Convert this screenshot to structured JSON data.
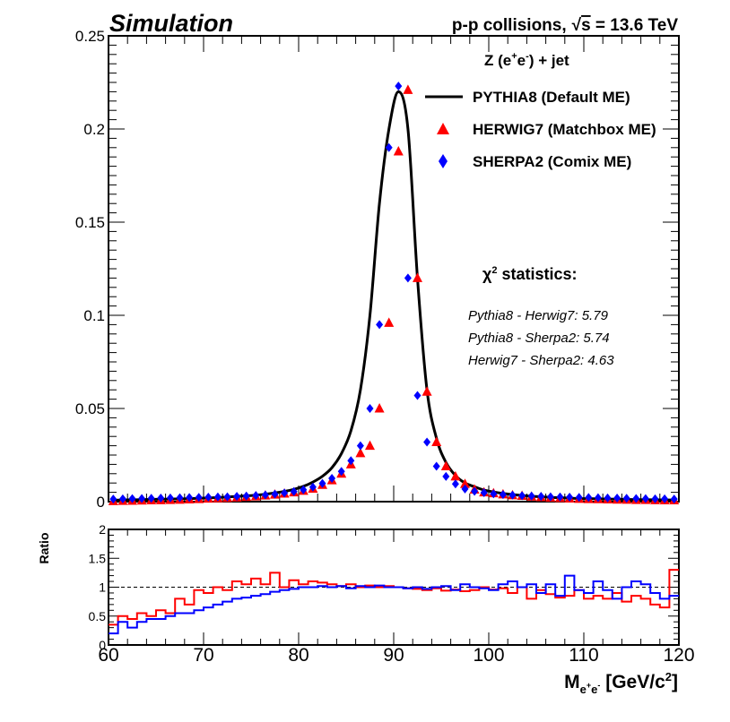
{
  "header": {
    "left": "Simulation",
    "right_prefix": "p-p collisions,",
    "right_sqrt": "√",
    "right_s": "s",
    "right_suffix": " = 13.6 TeV"
  },
  "process": {
    "main": "Z (e",
    "sup1": "+",
    "mid": "e",
    "sup2": "-",
    "tail": ") + jet"
  },
  "legend": [
    {
      "label": "PYTHIA8 (Default ME)",
      "marker": "line",
      "color": "#000000"
    },
    {
      "label": "HERWIG7 (Matchbox ME)",
      "marker": "triangle",
      "color": "#ff0000"
    },
    {
      "label": "SHERPA2 (Comix ME)",
      "marker": "diamond",
      "color": "#0000ff"
    }
  ],
  "chi2": {
    "title_symbol": "χ",
    "title_sup": "2",
    "title_rest": " statistics:",
    "lines": [
      "Pythia8 - Herwig7: 5.79",
      "Pythia8 - Sherpa2: 5.74",
      "Herwig7 - Sherpa2: 4.63"
    ]
  },
  "xlabel": {
    "main": "M",
    "sub1": "e",
    "subsup1": "+",
    "sub2": "e",
    "subsup2": "-",
    "unit": " [GeV/c",
    "unit_sup": "2",
    "unit_end": "]"
  },
  "ratio_ylabel": "Ratio",
  "chart_data": [
    {
      "type": "line",
      "panel": "main",
      "xlim": [
        60,
        120
      ],
      "ylim": [
        0,
        0.25
      ],
      "ytick_labels": [
        "0",
        "0.05",
        "0.1",
        "0.15",
        "0.2",
        "0.25"
      ],
      "ytick_values": [
        0,
        0.05,
        0.1,
        0.15,
        0.2,
        0.25
      ],
      "x": [
        60.5,
        61.5,
        62.5,
        63.5,
        64.5,
        65.5,
        66.5,
        67.5,
        68.5,
        69.5,
        70.5,
        71.5,
        72.5,
        73.5,
        74.5,
        75.5,
        76.5,
        77.5,
        78.5,
        79.5,
        80.5,
        81.5,
        82.5,
        83.5,
        84.5,
        85.5,
        86.5,
        87.5,
        88.5,
        89.5,
        90.5,
        91.5,
        92.5,
        93.5,
        94.5,
        95.5,
        96.5,
        97.5,
        98.5,
        99.5,
        100.5,
        101.5,
        102.5,
        103.5,
        104.5,
        105.5,
        106.5,
        107.5,
        108.5,
        109.5,
        110.5,
        111.5,
        112.5,
        113.5,
        114.5,
        115.5,
        116.5,
        117.5,
        118.5,
        119.5
      ],
      "series": [
        {
          "name": "PYTHIA8 (Default ME)",
          "style": "line",
          "color": "#000000",
          "values": [
            0.0008,
            0.0009,
            0.001,
            0.0011,
            0.0012,
            0.0013,
            0.0014,
            0.0015,
            0.0016,
            0.0018,
            0.002,
            0.0022,
            0.0025,
            0.0028,
            0.0031,
            0.0035,
            0.004,
            0.0047,
            0.0055,
            0.0066,
            0.0082,
            0.0105,
            0.0136,
            0.0182,
            0.0258,
            0.038,
            0.06,
            0.1,
            0.16,
            0.2,
            0.22,
            0.2,
            0.12,
            0.06,
            0.034,
            0.021,
            0.014,
            0.01,
            0.008,
            0.0062,
            0.0052,
            0.0044,
            0.0038,
            0.0033,
            0.0029,
            0.0026,
            0.0023,
            0.0021,
            0.0019,
            0.0017,
            0.0016,
            0.0015,
            0.0014,
            0.0013,
            0.0012,
            0.0011,
            0.001,
            0.001,
            0.0009,
            0.0009
          ]
        },
        {
          "name": "HERWIG7 (Matchbox ME)",
          "style": "triangle",
          "color": "#ff0000",
          "values": [
            0.0003,
            0.0004,
            0.0005,
            0.0006,
            0.0007,
            0.0008,
            0.0009,
            0.001,
            0.0012,
            0.0014,
            0.0016,
            0.0018,
            0.002,
            0.0022,
            0.0025,
            0.0028,
            0.0033,
            0.0038,
            0.0043,
            0.005,
            0.0058,
            0.007,
            0.009,
            0.0115,
            0.015,
            0.02,
            0.026,
            0.03,
            0.05,
            0.096,
            0.188,
            0.221,
            0.12,
            0.059,
            0.032,
            0.019,
            0.0135,
            0.0095,
            0.0065,
            0.005,
            0.0045,
            0.0039,
            0.0034,
            0.0031,
            0.0027,
            0.0024,
            0.0021,
            0.0019,
            0.0017,
            0.0015,
            0.0014,
            0.0013,
            0.0012,
            0.0011,
            0.001,
            0.0009,
            0.0009,
            0.0008,
            0.0007,
            0.0007
          ]
        },
        {
          "name": "SHERPA2 (Comix ME)",
          "style": "diamond",
          "color": "#0000ff",
          "values": [
            0.0014,
            0.0015,
            0.0016,
            0.0017,
            0.0018,
            0.0019,
            0.002,
            0.0021,
            0.0022,
            0.0023,
            0.0024,
            0.0025,
            0.0026,
            0.0028,
            0.003,
            0.0033,
            0.0036,
            0.004,
            0.0046,
            0.0054,
            0.0064,
            0.0078,
            0.0098,
            0.0125,
            0.0162,
            0.022,
            0.03,
            0.05,
            0.095,
            0.19,
            0.223,
            0.12,
            0.057,
            0.032,
            0.019,
            0.0135,
            0.0095,
            0.0068,
            0.0055,
            0.0048,
            0.0042,
            0.0038,
            0.0035,
            0.0032,
            0.003,
            0.0028,
            0.0026,
            0.0025,
            0.0024,
            0.0023,
            0.0022,
            0.0021,
            0.002,
            0.0019,
            0.0018,
            0.0017,
            0.0016,
            0.0015,
            0.0015,
            0.0014
          ]
        }
      ]
    },
    {
      "type": "line",
      "panel": "ratio",
      "xlim": [
        60,
        120
      ],
      "ylim": [
        0,
        2
      ],
      "xtick_labels": [
        "60",
        "70",
        "80",
        "90",
        "100",
        "110",
        "120"
      ],
      "xtick_values": [
        60,
        70,
        80,
        90,
        100,
        110,
        120
      ],
      "ytick_labels": [
        "0",
        "0.5",
        "1",
        "1.5",
        "2"
      ],
      "ytick_values": [
        0,
        0.5,
        1,
        1.5,
        2
      ],
      "reference_line": 1,
      "bin_edges": [
        60,
        61,
        62,
        63,
        64,
        65,
        66,
        67,
        68,
        69,
        70,
        71,
        72,
        73,
        74,
        75,
        76,
        77,
        78,
        79,
        80,
        81,
        82,
        83,
        84,
        85,
        86,
        87,
        88,
        89,
        90,
        91,
        92,
        93,
        94,
        95,
        96,
        97,
        98,
        99,
        100,
        101,
        102,
        103,
        104,
        105,
        106,
        107,
        108,
        109,
        110,
        111,
        112,
        113,
        114,
        115,
        116,
        117,
        118,
        119,
        120
      ],
      "series": [
        {
          "color": "#ff0000",
          "style": "step",
          "values": [
            0.35,
            0.5,
            0.45,
            0.55,
            0.5,
            0.6,
            0.55,
            0.8,
            0.7,
            0.95,
            0.9,
            1.0,
            0.95,
            1.1,
            1.05,
            1.15,
            1.05,
            1.25,
            1.0,
            1.12,
            1.05,
            1.1,
            1.08,
            1.05,
            1.02,
            1.05,
            1.0,
            1.03,
            1.0,
            1.02,
            1.0,
            0.98,
            0.97,
            0.95,
            0.98,
            0.94,
            0.96,
            0.93,
            0.95,
            1.0,
            0.96,
            0.98,
            0.9,
            1.0,
            0.8,
            0.95,
            0.88,
            0.82,
            0.85,
            0.95,
            0.8,
            0.85,
            0.8,
            0.9,
            0.75,
            0.85,
            0.8,
            0.7,
            0.65,
            1.3
          ]
        },
        {
          "color": "#0000ff",
          "style": "step",
          "values": [
            0.2,
            0.4,
            0.3,
            0.4,
            0.45,
            0.45,
            0.5,
            0.55,
            0.55,
            0.6,
            0.65,
            0.7,
            0.75,
            0.8,
            0.82,
            0.85,
            0.88,
            0.92,
            0.95,
            0.97,
            1.0,
            1.0,
            1.02,
            1.0,
            1.02,
            0.98,
            1.02,
            1.0,
            1.03,
            1.0,
            1.0,
            0.98,
            1.0,
            0.97,
            1.0,
            1.02,
            0.95,
            1.05,
            1.0,
            0.98,
            0.95,
            1.05,
            1.1,
            1.0,
            1.05,
            0.9,
            1.05,
            0.85,
            1.2,
            0.95,
            0.9,
            1.1,
            0.95,
            0.8,
            1.0,
            1.1,
            1.05,
            0.9,
            0.8,
            0.85
          ]
        }
      ]
    }
  ]
}
